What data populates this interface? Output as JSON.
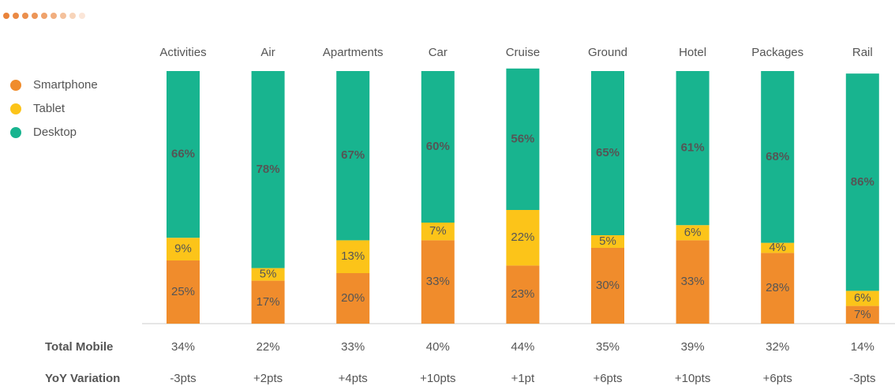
{
  "chart_data": {
    "type": "bar",
    "stacked": true,
    "categories": [
      "Activities",
      "Air",
      "Apartments",
      "Car",
      "Cruise",
      "Ground",
      "Hotel",
      "Packages",
      "Rail"
    ],
    "series": [
      {
        "name": "Smartphone",
        "color": "#f08c2c",
        "values": [
          25,
          17,
          20,
          33,
          23,
          30,
          33,
          28,
          7
        ],
        "value_labels": [
          "25%",
          "17%",
          "20%",
          "33%",
          "23%",
          "30%",
          "33%",
          "28%",
          "7%"
        ]
      },
      {
        "name": "Tablet",
        "color": "#fcc419",
        "values": [
          9,
          5,
          13,
          7,
          22,
          5,
          6,
          4,
          6
        ],
        "value_labels": [
          "9%",
          "5%",
          "13%",
          "7%",
          "22%",
          "5%",
          "6%",
          "4%",
          "6%"
        ]
      },
      {
        "name": "Desktop",
        "color": "#18b48f",
        "values": [
          66,
          78,
          67,
          60,
          56,
          65,
          61,
          68,
          86
        ],
        "value_labels": [
          "66%",
          "78%",
          "67%",
          "60%",
          "56%",
          "65%",
          "61%",
          "68%",
          "86%"
        ]
      }
    ],
    "ylim": [
      0,
      100
    ],
    "legend": "left",
    "rows": [
      {
        "name": "Total Mobile",
        "values": [
          34,
          22,
          33,
          40,
          44,
          35,
          39,
          32,
          14
        ],
        "value_labels": [
          "34%",
          "22%",
          "33%",
          "40%",
          "44%",
          "35%",
          "39%",
          "32%",
          "14%"
        ]
      },
      {
        "name": "YoY Variation",
        "values": [
          -3,
          2,
          4,
          10,
          1,
          6,
          10,
          6,
          -3
        ],
        "value_labels": [
          "-3pts",
          "+2pts",
          "+4pts",
          "+10pts",
          "+1pt",
          "+6pts",
          "+10pts",
          "+6pts",
          "-3pts"
        ]
      }
    ]
  }
}
